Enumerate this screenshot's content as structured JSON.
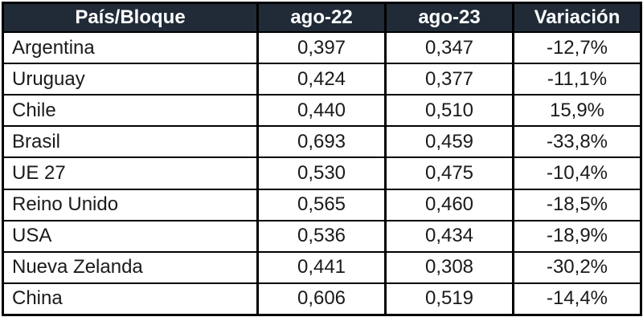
{
  "colors": {
    "header_bg": "#212B38",
    "header_text": "#FFFFFF",
    "border": "#000000",
    "body_text": "#1A1A1A",
    "row_bg": "#FFFFFF"
  },
  "table": {
    "headers": [
      "País/Bloque",
      "ago-22",
      "ago-23",
      "Variación"
    ],
    "rows": [
      [
        "Argentina",
        "0,397",
        "0,347",
        "-12,7%"
      ],
      [
        "Uruguay",
        "0,424",
        "0,377",
        "-11,1%"
      ],
      [
        "Chile",
        "0,440",
        "0,510",
        "15,9%"
      ],
      [
        "Brasil",
        "0,693",
        "0,459",
        "-33,8%"
      ],
      [
        "UE 27",
        "0,530",
        "0,475",
        "-10,4%"
      ],
      [
        "Reino Unido",
        "0,565",
        "0,460",
        "-18,5%"
      ],
      [
        "USA",
        "0,536",
        "0,434",
        "-18,9%"
      ],
      [
        "Nueva Zelanda",
        "0,441",
        "0,308",
        "-30,2%"
      ],
      [
        "China",
        "0,606",
        "0,519",
        "-14,4%"
      ]
    ]
  },
  "chart_data": {
    "type": "table",
    "title": "",
    "columns": [
      "País/Bloque",
      "ago-22",
      "ago-23",
      "Variación"
    ],
    "categories": [
      "Argentina",
      "Uruguay",
      "Chile",
      "Brasil",
      "UE 27",
      "Reino Unido",
      "USA",
      "Nueva Zelanda",
      "China"
    ],
    "series": [
      {
        "name": "ago-22",
        "values": [
          0.397,
          0.424,
          0.44,
          0.693,
          0.53,
          0.565,
          0.536,
          0.441,
          0.606
        ]
      },
      {
        "name": "ago-23",
        "values": [
          0.347,
          0.377,
          0.51,
          0.459,
          0.475,
          0.46,
          0.434,
          0.308,
          0.519
        ]
      },
      {
        "name": "Variación %",
        "values": [
          -12.7,
          -11.1,
          15.9,
          -33.8,
          -10.4,
          -18.5,
          -18.9,
          -30.2,
          -14.4
        ]
      }
    ],
    "number_format": "decimal-comma"
  }
}
